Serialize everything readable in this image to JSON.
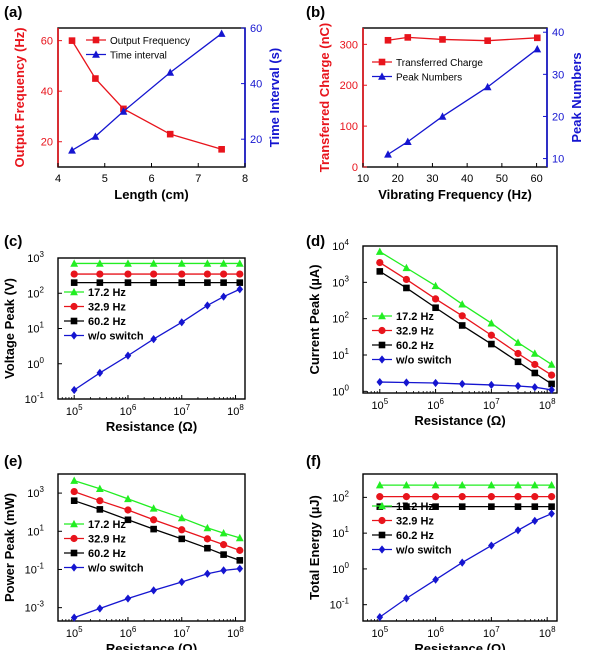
{
  "colors": {
    "red": "#e8141c",
    "blue": "#1515d0",
    "green": "#22ee22",
    "black": "#000000"
  },
  "chart_data": [
    {
      "panel": "(a)",
      "type": "line",
      "xlabel": "Length (cm)",
      "ylabel": "Output Frequency (Hz)",
      "y2label": "Time Interval (s)",
      "xlim": [
        4,
        8
      ],
      "ylim": [
        10,
        65
      ],
      "y2lim": [
        10,
        60
      ],
      "xscale": "linear",
      "yscale": "linear",
      "xticks": [
        4,
        5,
        6,
        7,
        8
      ],
      "yticks": [
        20,
        40,
        60
      ],
      "y2ticks": [
        20,
        40,
        60
      ],
      "legend_position": "top-right",
      "series": [
        {
          "name": "Output Frequency",
          "axis": "left",
          "color": "#e8141c",
          "marker": "square",
          "x": [
            4.3,
            4.8,
            5.4,
            6.4,
            7.5
          ],
          "y": [
            60,
            45,
            33,
            23,
            17
          ]
        },
        {
          "name": "Time interval",
          "axis": "right",
          "color": "#1515d0",
          "marker": "triangle",
          "x": [
            4.3,
            4.8,
            5.4,
            6.4,
            7.5
          ],
          "y": [
            16,
            21,
            30,
            44,
            58
          ]
        }
      ]
    },
    {
      "panel": "(b)",
      "type": "line",
      "xlabel": "Vibrating Frequency (Hz)",
      "ylabel": "Transferred Charge (nC)",
      "y2label": "Peak Numbers",
      "xlim": [
        10,
        63
      ],
      "ylim": [
        0,
        340
      ],
      "y2lim": [
        8,
        41
      ],
      "xscale": "linear",
      "yscale": "linear",
      "xticks": [
        10,
        20,
        30,
        40,
        50,
        60
      ],
      "yticks": [
        0,
        100,
        200,
        300
      ],
      "y2ticks": [
        10,
        20,
        30,
        40
      ],
      "legend_position": "center-left",
      "series": [
        {
          "name": "Transferred Charge",
          "axis": "left",
          "color": "#e8141c",
          "marker": "square",
          "x": [
            17.2,
            22.9,
            32.9,
            45.9,
            60.2
          ],
          "y": [
            310,
            317,
            312,
            309,
            316
          ]
        },
        {
          "name": "Peak Numbers",
          "axis": "right",
          "color": "#1515d0",
          "marker": "triangle",
          "x": [
            17.2,
            22.9,
            32.9,
            45.9,
            60.2
          ],
          "y": [
            11,
            14,
            20,
            27,
            36
          ]
        }
      ]
    },
    {
      "panel": "(c)",
      "type": "line",
      "xlabel": "Resistance (Ω)",
      "ylabel": "Voltage Peak (V)",
      "xlim": [
        50000,
        150000000
      ],
      "ylim": [
        0.1,
        1000
      ],
      "xscale": "log",
      "yscale": "log",
      "xticks": [
        100000,
        1000000,
        10000000,
        100000000
      ],
      "xtick_labels": [
        "10",
        "10",
        "10",
        "10"
      ],
      "xtick_exponents": [
        "5",
        "6",
        "7",
        "8"
      ],
      "yticks": [
        0.1,
        1,
        10,
        100,
        1000
      ],
      "ytick_labels": [
        "10",
        "10",
        "10",
        "10",
        "10"
      ],
      "ytick_exponents": [
        "-1",
        "0",
        "1",
        "2",
        "3"
      ],
      "legend_position": "center-left",
      "series": [
        {
          "name": "17.2 Hz",
          "color": "#22ee22",
          "marker": "triangle",
          "x": [
            100000,
            300000,
            1000000,
            3000000,
            10000000,
            30000000,
            60000000,
            120000000
          ],
          "y": [
            700,
            700,
            700,
            700,
            700,
            700,
            700,
            700
          ]
        },
        {
          "name": "32.9 Hz",
          "color": "#e8141c",
          "marker": "circle",
          "x": [
            100000,
            300000,
            1000000,
            3000000,
            10000000,
            30000000,
            60000000,
            120000000
          ],
          "y": [
            350,
            350,
            350,
            350,
            350,
            350,
            350,
            350
          ]
        },
        {
          "name": "60.2 Hz",
          "color": "#000000",
          "marker": "square",
          "x": [
            100000,
            300000,
            1000000,
            3000000,
            10000000,
            30000000,
            60000000,
            120000000
          ],
          "y": [
            200,
            200,
            200,
            200,
            200,
            200,
            200,
            200
          ]
        },
        {
          "name": "w/o switch",
          "color": "#1515d0",
          "marker": "diamond",
          "x": [
            100000,
            300000,
            1000000,
            3000000,
            10000000,
            30000000,
            60000000,
            120000000
          ],
          "y": [
            0.18,
            0.55,
            1.7,
            5,
            15,
            45,
            80,
            130
          ]
        }
      ]
    },
    {
      "panel": "(d)",
      "type": "line",
      "xlabel": "Resistance (Ω)",
      "ylabel": "Current Peak (µA)",
      "xlim": [
        50000,
        150000000
      ],
      "ylim": [
        0.9,
        10000
      ],
      "xscale": "log",
      "yscale": "log",
      "xticks": [
        100000,
        1000000,
        10000000,
        100000000
      ],
      "xtick_labels": [
        "10",
        "10",
        "10",
        "10"
      ],
      "xtick_exponents": [
        "5",
        "6",
        "7",
        "8"
      ],
      "yticks": [
        1,
        10,
        100,
        1000,
        10000
      ],
      "ytick_labels": [
        "10",
        "10",
        "10",
        "10",
        "10"
      ],
      "ytick_exponents": [
        "0",
        "1",
        "2",
        "3",
        "4"
      ],
      "legend_position": "bottom-left",
      "series": [
        {
          "name": "17.2 Hz",
          "color": "#22ee22",
          "marker": "triangle",
          "x": [
            100000,
            300000,
            1000000,
            3000000,
            10000000,
            30000000,
            60000000,
            120000000
          ],
          "y": [
            7000,
            2500,
            800,
            250,
            75,
            22,
            11,
            5.5
          ]
        },
        {
          "name": "32.9 Hz",
          "color": "#e8141c",
          "marker": "circle",
          "x": [
            100000,
            300000,
            1000000,
            3000000,
            10000000,
            30000000,
            60000000,
            120000000
          ],
          "y": [
            3500,
            1200,
            350,
            120,
            35,
            11,
            5.5,
            2.8
          ]
        },
        {
          "name": "60.2 Hz",
          "color": "#000000",
          "marker": "square",
          "x": [
            100000,
            300000,
            1000000,
            3000000,
            10000000,
            30000000,
            60000000,
            120000000
          ],
          "y": [
            2000,
            700,
            200,
            65,
            20,
            6.5,
            3.2,
            1.6
          ]
        },
        {
          "name": "w/o switch",
          "color": "#1515d0",
          "marker": "diamond",
          "x": [
            100000,
            300000,
            1000000,
            3000000,
            10000000,
            30000000,
            60000000,
            120000000
          ],
          "y": [
            1.8,
            1.75,
            1.7,
            1.6,
            1.5,
            1.4,
            1.3,
            1.1
          ]
        }
      ]
    },
    {
      "panel": "(e)",
      "type": "line",
      "xlabel": "Resistance (Ω)",
      "ylabel": "Power Peak (mW)",
      "xlim": [
        50000,
        150000000
      ],
      "ylim": [
        0.0002,
        10000
      ],
      "xscale": "log",
      "yscale": "log",
      "xticks": [
        100000,
        1000000,
        10000000,
        100000000
      ],
      "xtick_labels": [
        "10",
        "10",
        "10",
        "10"
      ],
      "xtick_exponents": [
        "5",
        "6",
        "7",
        "8"
      ],
      "yticks": [
        0.001,
        0.1,
        10,
        1000
      ],
      "ytick_labels": [
        "10",
        "10",
        "10",
        "10"
      ],
      "ytick_exponents": [
        "-3",
        "-1",
        "1",
        "3"
      ],
      "legend_position": "center-left",
      "series": [
        {
          "name": "17.2 Hz",
          "color": "#22ee22",
          "marker": "triangle",
          "x": [
            100000,
            300000,
            1000000,
            3000000,
            10000000,
            30000000,
            60000000,
            120000000
          ],
          "y": [
            4500,
            1700,
            500,
            160,
            50,
            15,
            8,
            4.5
          ]
        },
        {
          "name": "32.9 Hz",
          "color": "#e8141c",
          "marker": "circle",
          "x": [
            100000,
            300000,
            1000000,
            3000000,
            10000000,
            30000000,
            60000000,
            120000000
          ],
          "y": [
            1200,
            400,
            130,
            40,
            12,
            4,
            2,
            1
          ]
        },
        {
          "name": "60.2 Hz",
          "color": "#000000",
          "marker": "square",
          "x": [
            100000,
            300000,
            1000000,
            3000000,
            10000000,
            30000000,
            60000000,
            120000000
          ],
          "y": [
            400,
            140,
            40,
            13,
            4,
            1.3,
            0.6,
            0.3
          ]
        },
        {
          "name": "w/o switch",
          "color": "#1515d0",
          "marker": "diamond",
          "x": [
            100000,
            300000,
            1000000,
            3000000,
            10000000,
            30000000,
            60000000,
            120000000
          ],
          "y": [
            0.0003,
            0.0009,
            0.003,
            0.008,
            0.022,
            0.06,
            0.09,
            0.11
          ]
        }
      ]
    },
    {
      "panel": "(f)",
      "type": "line",
      "xlabel": "Resistance (Ω)",
      "ylabel": "Total Energy (µJ)",
      "xlim": [
        50000,
        150000000
      ],
      "ylim": [
        0.035,
        450
      ],
      "xscale": "log",
      "yscale": "log",
      "xticks": [
        100000,
        1000000,
        10000000,
        100000000
      ],
      "xtick_labels": [
        "10",
        "10",
        "10",
        "10"
      ],
      "xtick_exponents": [
        "5",
        "6",
        "7",
        "8"
      ],
      "yticks": [
        0.1,
        1,
        10,
        100
      ],
      "ytick_labels": [
        "10",
        "10",
        "10",
        "10"
      ],
      "ytick_exponents": [
        "-1",
        "0",
        "1",
        "2"
      ],
      "legend_position": "center-left",
      "series": [
        {
          "name": "17.2 Hz",
          "color": "#22ee22",
          "marker": "triangle",
          "x": [
            100000,
            300000,
            1000000,
            3000000,
            10000000,
            30000000,
            60000000,
            120000000
          ],
          "y": [
            220,
            220,
            220,
            220,
            220,
            220,
            220,
            220
          ]
        },
        {
          "name": "32.9 Hz",
          "color": "#e8141c",
          "marker": "circle",
          "x": [
            100000,
            300000,
            1000000,
            3000000,
            10000000,
            30000000,
            60000000,
            120000000
          ],
          "y": [
            105,
            105,
            105,
            105,
            105,
            105,
            105,
            105
          ]
        },
        {
          "name": "60.2 Hz",
          "color": "#000000",
          "marker": "square",
          "x": [
            100000,
            300000,
            1000000,
            3000000,
            10000000,
            30000000,
            60000000,
            120000000
          ],
          "y": [
            55,
            55,
            55,
            55,
            55,
            55,
            55,
            55
          ]
        },
        {
          "name": "w/o switch",
          "color": "#1515d0",
          "marker": "diamond",
          "x": [
            100000,
            300000,
            1000000,
            3000000,
            10000000,
            30000000,
            60000000,
            120000000
          ],
          "y": [
            0.045,
            0.15,
            0.5,
            1.5,
            4.5,
            12,
            22,
            35
          ]
        }
      ]
    }
  ]
}
